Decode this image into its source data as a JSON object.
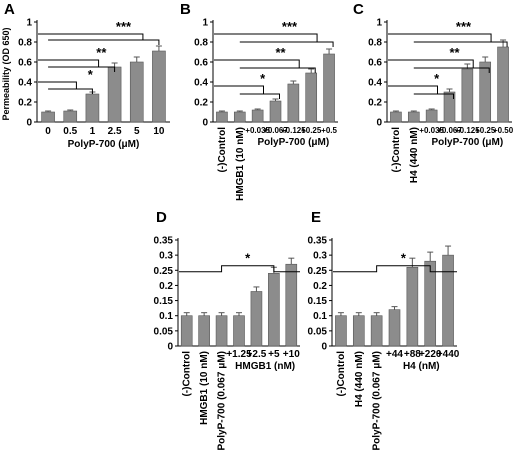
{
  "chart_data": [
    {
      "panel": "A",
      "type": "bar",
      "ylabel": "Permeability (OD 650)",
      "xlabel": "PolyP-700  (μM)",
      "ylim": [
        0,
        1
      ],
      "yticks": [
        "0",
        "0.2",
        "0.4",
        "0.6",
        "0.8",
        "1"
      ],
      "categories": [
        "0",
        "0.5",
        "1",
        "2.5",
        "5",
        "10"
      ],
      "values": [
        0.1,
        0.11,
        0.28,
        0.55,
        0.6,
        0.71
      ],
      "errors": [
        0.01,
        0.01,
        0.02,
        0.04,
        0.05,
        0.05
      ],
      "significance": [
        {
          "label": "*",
          "from": 0,
          "to": 2
        },
        {
          "label": "**",
          "from": 0,
          "to": 3
        },
        {
          "label": "***",
          "from": 0,
          "to": 5
        }
      ],
      "bar_color": "#8c8c8c"
    },
    {
      "panel": "B",
      "type": "bar",
      "xlabel": "PolyP-700  (μM)",
      "ylim": [
        0,
        1
      ],
      "yticks": [
        "0",
        "0.2",
        "0.4",
        "0.6",
        "0.8",
        "1"
      ],
      "categories": [
        "(-)Control",
        "HMGB1 (10 nM)",
        "+0.035",
        "+0.067",
        "+0.125",
        "+0.25",
        "+0.5"
      ],
      "values": [
        0.1,
        0.1,
        0.12,
        0.21,
        0.38,
        0.49,
        0.68
      ],
      "errors": [
        0.01,
        0.01,
        0.01,
        0.02,
        0.03,
        0.04,
        0.05
      ],
      "significance": [
        {
          "label": "*",
          "from": 1,
          "to": 3
        },
        {
          "label": "**",
          "from": 1,
          "to": 5
        },
        {
          "label": "***",
          "from": 1,
          "to": 6
        }
      ],
      "bar_color": "#8c8c8c"
    },
    {
      "panel": "C",
      "type": "bar",
      "xlabel": "PolyP-700  (μM)",
      "ylim": [
        0,
        1
      ],
      "yticks": [
        "0",
        "0.2",
        "0.4",
        "0.6",
        "0.8",
        "1"
      ],
      "categories": [
        "(-)Control",
        "H4 (440 nM)",
        "+0.035",
        "+0.067",
        "+0.125",
        "+0.25",
        "+0.50"
      ],
      "values": [
        0.1,
        0.1,
        0.12,
        0.3,
        0.53,
        0.6,
        0.75
      ],
      "errors": [
        0.01,
        0.01,
        0.01,
        0.03,
        0.05,
        0.05,
        0.07
      ],
      "significance": [
        {
          "label": "*",
          "from": 1,
          "to": 3
        },
        {
          "label": "**",
          "from": 1,
          "to": 5
        },
        {
          "label": "***",
          "from": 1,
          "to": 6
        }
      ],
      "bar_color": "#8c8c8c"
    },
    {
      "panel": "D",
      "type": "bar",
      "xlabel": "HMGB1  (nM)",
      "ylim": [
        0,
        0.35
      ],
      "yticks": [
        "0",
        "0.05",
        "0.1",
        "0.15",
        "0.2",
        "0.25",
        "0.3",
        "0.35"
      ],
      "categories": [
        "(-)Control",
        "HMGB1 (10 nM)",
        "PolyP-700 (0.067 μM)",
        "+1.25",
        "+2.5",
        "+5",
        "+10"
      ],
      "values": [
        0.1,
        0.1,
        0.1,
        0.1,
        0.18,
        0.24,
        0.27
      ],
      "errors": [
        0.01,
        0.01,
        0.01,
        0.01,
        0.015,
        0.02,
        0.02
      ],
      "significance": [
        {
          "label": "*",
          "from": 2,
          "to": 5
        }
      ],
      "bar_color": "#8c8c8c"
    },
    {
      "panel": "E",
      "type": "bar",
      "xlabel": "H4  (nM)",
      "ylim": [
        0,
        0.35
      ],
      "yticks": [
        "0",
        "0.05",
        "0.1",
        "0.15",
        "0.2",
        "0.25",
        "0.3",
        "0.35"
      ],
      "categories": [
        "(-)Control",
        "H4 (440 nM)",
        "PolyP-700 (0.067 μM)",
        "+44",
        "+88",
        "+220",
        "+440"
      ],
      "values": [
        0.1,
        0.1,
        0.1,
        0.12,
        0.26,
        0.28,
        0.3
      ],
      "errors": [
        0.01,
        0.01,
        0.01,
        0.01,
        0.03,
        0.03,
        0.03
      ],
      "significance": [
        {
          "label": "*",
          "from": 2,
          "to": 5
        }
      ],
      "bar_color": "#8c8c8c"
    }
  ]
}
